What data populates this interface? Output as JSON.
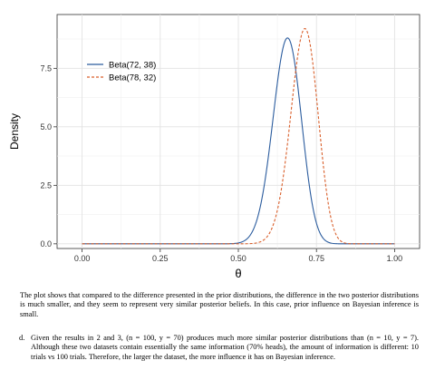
{
  "chart_data": {
    "type": "line",
    "title": "",
    "xlabel": "θ",
    "ylabel": "Density",
    "xlim": [
      -0.08,
      1.08
    ],
    "ylim": [
      -0.2,
      9.8
    ],
    "xticks": [
      0.0,
      0.25,
      0.5,
      0.75,
      1.0
    ],
    "xtick_labels": [
      "0.00",
      "0.25",
      "0.50",
      "0.75",
      "1.00"
    ],
    "yticks": [
      0.0,
      2.5,
      5.0,
      7.5
    ],
    "ytick_labels": [
      "0.0",
      "2.5",
      "5.0",
      "7.5"
    ],
    "grid": true,
    "legend_position": "top-left",
    "series": [
      {
        "name": "Beta(72, 38)",
        "a": 72,
        "b": 38,
        "color": "#2b5c9e",
        "style": "solid",
        "peak": 8.8
      },
      {
        "name": "Beta(78, 32)",
        "a": 78,
        "b": 32,
        "color": "#d95f2b",
        "style": "dashed",
        "peak": 9.2
      }
    ]
  },
  "text": {
    "caption": "The plot shows that compared to the difference presented in the prior distributions, the difference in the two posterior distributions is much smaller, and they seem to represent very similar posterior beliefs. In this case, prior influence on Bayesian inference is small.",
    "item_label": "d.",
    "item_body": "Given the results in 2 and 3, (n = 100, y = 70) produces much more similar posterior distributions than (n = 10, y = 7). Although these two datasets contain essentially the same information (70% heads), the amount of information is different: 10 trials vs 100 trials. Therefore, the larger the dataset, the more influence it has on Bayesian inference."
  }
}
